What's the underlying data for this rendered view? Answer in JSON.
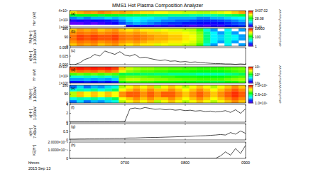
{
  "title": "MMS1 Hot Plasma Composition Analyzer",
  "x_axis": {
    "xlim": [
      365,
      540
    ],
    "xticks": [
      {
        "value": 420,
        "label": "0700"
      },
      {
        "value": 480,
        "label": "0800"
      },
      {
        "value": 540,
        "label": "0900"
      }
    ],
    "labels": [
      "hhmm",
      "2015 Sep 13"
    ]
  },
  "time_bins": [
    365,
    372,
    379,
    386,
    393,
    400,
    407,
    414,
    421,
    428,
    435,
    442,
    449,
    456,
    463,
    470,
    477,
    484,
    491,
    498,
    505,
    512,
    519,
    526,
    533,
    540
  ],
  "chart_data": [
    {
      "type": "heatmap",
      "panel_label": "(a)",
      "ylabel": [
        "He⁺ (eV)"
      ],
      "log": "y",
      "ylim": [
        1,
        40000
      ],
      "yticks": [
        {
          "value": 40000,
          "label": "4×10⁴"
        },
        {
          "value": 100,
          "label": "1×10²"
        },
        {
          "value": 1,
          "label": "1×10⁰"
        }
      ],
      "y_bins": [
        1,
        5,
        30,
        150,
        900,
        5000,
        40000
      ],
      "colorbar": {
        "range": [
          0.23,
          3437.02
        ],
        "ticks": [
          3437.02,
          28.08,
          0.23
        ],
        "label": "eV/cm²/s/sr/eV",
        "log": true
      },
      "cells": [
        [
          null,
          null,
          null,
          null,
          null,
          null,
          null,
          null,
          0.5,
          0.8,
          0.5,
          0.5,
          0.4,
          0.5,
          0.4,
          0.5,
          0.4,
          0.3,
          0.4,
          0.3,
          0.5,
          0.4,
          0.6,
          0.8,
          1
        ],
        [
          0.3,
          0.3,
          0.4,
          0.3,
          0.4,
          0.5,
          0.6,
          1.2,
          2,
          3,
          2.5,
          2,
          1.5,
          1.2,
          1,
          1,
          0.8,
          0.8,
          0.7,
          0.6,
          0.6,
          0.7,
          0.9,
          1.2,
          1.5
        ],
        [
          0.5,
          0.6,
          0.5,
          0.7,
          0.6,
          0.8,
          1,
          2,
          4,
          5,
          4,
          3,
          3,
          2,
          2,
          1.5,
          1.5,
          1.2,
          1,
          1,
          1,
          1.2,
          1.5,
          2,
          3
        ],
        [
          2,
          3,
          2,
          3,
          3,
          4,
          3,
          4,
          5,
          6,
          5,
          5,
          4,
          4,
          3,
          3,
          3,
          3,
          2,
          2,
          3,
          3,
          4,
          5,
          6
        ],
        [
          30,
          40,
          35,
          40,
          30,
          40,
          35,
          30,
          30,
          25,
          25,
          20,
          20,
          20,
          15,
          15,
          15,
          12,
          12,
          10,
          12,
          15,
          20,
          25,
          30
        ],
        [
          500,
          800,
          1000,
          900,
          1200,
          1000,
          800,
          900,
          700,
          600,
          500,
          500,
          400,
          400,
          300,
          300,
          250,
          250,
          200,
          200,
          250,
          300,
          400,
          600,
          900
        ]
      ]
    },
    {
      "type": "heatmap",
      "panel_label": "(b)",
      "ylabel": [
        "PA[He⁺]",
        "1-100keV"
      ],
      "ylim": [
        0,
        180
      ],
      "yticks": [
        0,
        90,
        180
      ],
      "y_bins": [
        0,
        30,
        60,
        90,
        120,
        150,
        180
      ],
      "colorbar": {
        "range": [
          1,
          10000
        ],
        "ticks": [
          10000,
          100,
          1
        ],
        "label": "eV/cm²/s/sr/eV",
        "log": true
      },
      "cells": [
        [
          2000,
          3000,
          2500,
          3000,
          2000,
          2500,
          3000,
          2000,
          1500,
          2000,
          1500,
          1500,
          1000,
          1200,
          1000,
          1000,
          800,
          700,
          300,
          30,
          10,
          null,
          20,
          null,
          10
        ],
        [
          3000,
          4000,
          3500,
          4000,
          3000,
          3500,
          4000,
          3000,
          2500,
          3000,
          2500,
          2000,
          2000,
          1800,
          1500,
          1500,
          1200,
          1000,
          500,
          50,
          20,
          10,
          30,
          10,
          null
        ],
        [
          4000,
          6000,
          5000,
          6000,
          5000,
          5000,
          6000,
          4000,
          3500,
          4000,
          3500,
          3000,
          2500,
          2500,
          2000,
          2000,
          1500,
          1200,
          600,
          60,
          20,
          15,
          30,
          20,
          10
        ],
        [
          4000,
          6000,
          5000,
          6000,
          5000,
          5000,
          6000,
          4000,
          3500,
          4000,
          3500,
          3000,
          2500,
          2500,
          2000,
          2000,
          1500,
          1200,
          600,
          60,
          20,
          15,
          30,
          20,
          10
        ],
        [
          3000,
          4000,
          3500,
          4000,
          3000,
          3500,
          4000,
          3000,
          2500,
          3000,
          2500,
          2000,
          2000,
          1800,
          1500,
          1500,
          1200,
          1000,
          500,
          50,
          20,
          10,
          30,
          10,
          null
        ],
        [
          2000,
          3000,
          2500,
          3000,
          2000,
          2500,
          3000,
          2000,
          1500,
          2000,
          1500,
          1500,
          1000,
          1200,
          1000,
          1000,
          800,
          700,
          300,
          30,
          10,
          null,
          20,
          null,
          10
        ]
      ]
    },
    {
      "type": "line",
      "panel_label": "(c)",
      "ylabel": [
        "n[He⁺]",
        "1-100keV"
      ],
      "ylim": [
        0,
        0.05
      ],
      "yticks": [
        {
          "value": 0,
          "label": "0.000"
        },
        {
          "value": 0.025,
          "label": "0.025"
        },
        {
          "value": 0.05,
          "label": "0.050"
        }
      ],
      "color": "#000000",
      "x": [
        365,
        370,
        375,
        380,
        385,
        390,
        395,
        400,
        405,
        410,
        415,
        420,
        425,
        430,
        435,
        440,
        445,
        450,
        455,
        460,
        465,
        470,
        475,
        480,
        485,
        490,
        495,
        500,
        505,
        510,
        515,
        520,
        525,
        530,
        535,
        540
      ],
      "values": [
        0,
        0,
        0.005,
        0.015,
        0.02,
        0.03,
        0.025,
        0.04,
        0.035,
        0.03,
        0.038,
        0.028,
        0.025,
        0.03,
        0.02,
        0.022,
        0.018,
        0.015,
        0.012,
        0.014,
        0.01,
        0.011,
        0.008,
        0.009,
        0.007,
        0.008,
        0.006,
        0.005,
        0.004,
        0.003,
        0.003,
        0.002,
        0.002,
        0.001,
        0.002,
        0.001
      ]
    },
    {
      "type": "heatmap",
      "panel_label": "(d)",
      "ylabel": [
        "H⁺ (eV)"
      ],
      "log": "y",
      "ylim": [
        1,
        40000
      ],
      "yticks": [
        {
          "value": 40000,
          "label": "4×10⁴"
        },
        {
          "value": 100,
          "label": "1×10²"
        },
        {
          "value": 1,
          "label": "1×10⁰"
        }
      ],
      "y_bins": [
        1,
        5,
        30,
        150,
        900,
        5000,
        40000
      ],
      "colorbar": {
        "range": [
          10,
          100000
        ],
        "ticks": [
          {
            "value": 100000,
            "label": "10⁵"
          },
          {
            "value": 1000,
            "label": "10³"
          },
          {
            "value": 10,
            "label": "10¹"
          }
        ],
        "label": "eV/cm²/s/sr/eV",
        "log": true
      },
      "cells": [
        [
          30,
          30,
          40,
          30,
          40,
          30,
          40,
          2000,
          3000,
          3000,
          2500,
          2500,
          2000,
          2000,
          2000,
          1500,
          1500,
          1500,
          1200,
          1200,
          1000,
          1000,
          1500,
          2000,
          3000
        ],
        [
          100,
          100,
          120,
          100,
          120,
          100,
          150,
          5000,
          8000,
          8000,
          6000,
          6000,
          5000,
          5000,
          4000,
          4000,
          3500,
          3500,
          3000,
          3000,
          3000,
          3000,
          4000,
          5000,
          6000
        ],
        [
          300,
          300,
          400,
          300,
          400,
          300,
          500,
          3000,
          4000,
          4000,
          3500,
          3000,
          3000,
          2500,
          2500,
          2000,
          2000,
          2000,
          1800,
          1800,
          1500,
          1500,
          2000,
          2500,
          3000
        ],
        [
          3000,
          4000,
          3000,
          4000,
          3000,
          4000,
          3000,
          1000,
          800,
          800,
          700,
          700,
          600,
          600,
          500,
          500,
          500,
          500,
          400,
          400,
          400,
          400,
          500,
          600,
          800
        ],
        [
          30000,
          40000,
          35000,
          40000,
          30000,
          40000,
          30000,
          10000,
          5000,
          4000,
          3000,
          3000,
          2500,
          2500,
          2000,
          2000,
          2000,
          1800,
          1500,
          1500,
          1500,
          1500,
          2000,
          2500,
          3000
        ],
        [
          60000,
          80000,
          70000,
          80000,
          70000,
          80000,
          60000,
          20000,
          8000,
          6000,
          5000,
          5000,
          4000,
          4000,
          3500,
          3500,
          3000,
          3000,
          2500,
          2500,
          2500,
          2500,
          3000,
          3500,
          4000
        ]
      ]
    },
    {
      "type": "heatmap",
      "panel_label": "(e)",
      "ylabel": [
        "PA[H⁺]",
        "1-100keV"
      ],
      "ylim": [
        0,
        180
      ],
      "yticks": [
        0,
        90,
        180
      ],
      "y_bins": [
        0,
        30,
        60,
        90,
        120,
        150,
        180
      ],
      "colorbar": {
        "range": [
          100000,
          700000
        ],
        "ticks": [
          {
            "value": 700000,
            "label": "7.0×10⁵"
          },
          {
            "value": 260000,
            "label": "2.6×10⁵"
          },
          {
            "value": 100000,
            "label": "1.0×10⁵"
          }
        ],
        "label": "eV/cm²/s/sr/eV",
        "log": true
      },
      "cells": [
        [
          150000,
          180000,
          150000,
          170000,
          160000,
          180000,
          200000,
          400000,
          450000,
          500000,
          450000,
          500000,
          400000,
          450000,
          500000,
          450000,
          400000,
          450000,
          500000,
          450000,
          400000,
          450000,
          500000,
          550000,
          500000
        ],
        [
          200000,
          220000,
          210000,
          230000,
          200000,
          220000,
          250000,
          450000,
          500000,
          550000,
          500000,
          550000,
          500000,
          500000,
          550000,
          500000,
          450000,
          500000,
          550000,
          500000,
          450000,
          500000,
          550000,
          600000,
          550000
        ],
        [
          400000,
          500000,
          450000,
          500000,
          450000,
          500000,
          450000,
          550000,
          600000,
          600000,
          550000,
          600000,
          550000,
          600000,
          600000,
          550000,
          500000,
          550000,
          600000,
          550000,
          500000,
          550000,
          600000,
          650000,
          600000
        ],
        [
          400000,
          500000,
          450000,
          500000,
          450000,
          500000,
          450000,
          550000,
          600000,
          600000,
          550000,
          600000,
          550000,
          600000,
          600000,
          550000,
          500000,
          550000,
          600000,
          550000,
          500000,
          550000,
          600000,
          650000,
          600000
        ],
        [
          200000,
          220000,
          210000,
          230000,
          200000,
          220000,
          250000,
          450000,
          500000,
          550000,
          500000,
          550000,
          500000,
          500000,
          550000,
          500000,
          450000,
          500000,
          550000,
          500000,
          450000,
          500000,
          550000,
          600000,
          550000
        ],
        [
          150000,
          180000,
          150000,
          170000,
          160000,
          180000,
          200000,
          400000,
          450000,
          500000,
          450000,
          500000,
          400000,
          450000,
          500000,
          450000,
          400000,
          450000,
          500000,
          450000,
          400000,
          450000,
          500000,
          550000,
          500000
        ]
      ]
    },
    {
      "type": "line",
      "panel_label": "(f)",
      "ylabel": [
        "n[H⁺]",
        "1-100eV"
      ],
      "ylim": [
        0,
        4
      ],
      "yticks": [
        0,
        2,
        4
      ],
      "color": "#000000",
      "x": [
        365,
        370,
        375,
        380,
        385,
        390,
        395,
        400,
        405,
        410,
        415,
        420,
        425,
        430,
        435,
        440,
        445,
        450,
        455,
        460,
        465,
        470,
        475,
        480,
        485,
        490,
        495,
        500,
        505,
        510,
        515,
        520,
        525,
        530,
        535,
        540
      ],
      "values": [
        0.1,
        0.1,
        0.1,
        0.1,
        0.1,
        0.1,
        0.1,
        0.1,
        0.1,
        0.1,
        0.1,
        0.2,
        3.0,
        3.2,
        3.0,
        3.3,
        3.1,
        2.9,
        3.0,
        2.8,
        2.9,
        2.7,
        2.8,
        2.6,
        2.7,
        2.5,
        2.6,
        2.4,
        2.5,
        2.3,
        2.4,
        2.6,
        2.2,
        2.8,
        2.0,
        3.0
      ]
    },
    {
      "type": "line",
      "panel_label": "(g)",
      "ylabel": [
        "n[H⁺]",
        "7-40keV"
      ],
      "ylim": [
        0,
        1
      ],
      "yticks": [
        0,
        0.5,
        1
      ],
      "color": "#000000",
      "x": [
        365,
        370,
        375,
        380,
        385,
        390,
        395,
        400,
        405,
        410,
        415,
        420,
        425,
        430,
        435,
        440,
        445,
        450,
        455,
        460,
        465,
        470,
        475,
        480,
        485,
        490,
        495,
        500,
        505,
        510,
        515,
        520,
        525,
        530,
        535,
        540
      ],
      "values": [
        0.05,
        0.05,
        0.06,
        0.06,
        0.07,
        0.07,
        0.08,
        0.08,
        0.09,
        0.1,
        0.1,
        0.11,
        0.12,
        0.12,
        0.13,
        0.14,
        0.15,
        0.15,
        0.16,
        0.17,
        0.18,
        0.19,
        0.2,
        0.21,
        0.22,
        0.24,
        0.25,
        0.26,
        0.28,
        0.3,
        0.33,
        0.3,
        0.45,
        0.35,
        0.55,
        0.4
      ]
    },
    {
      "type": "line",
      "panel_label": "(h)",
      "ylabel": [
        "KE[H⁺]"
      ],
      "ylim": [
        0,
        2e-05
      ],
      "yticks": [
        0,
        {
          "value": 1e-05,
          "label": "1.0000×10⁻⁵"
        },
        {
          "value": 2e-05,
          "label": "2.0000×10⁻⁵"
        }
      ],
      "color": "#000000",
      "x": [
        365,
        370,
        375,
        380,
        385,
        390,
        395,
        400,
        405,
        410,
        415,
        420,
        425,
        430,
        435,
        440,
        445,
        450,
        455,
        460,
        465,
        470,
        475,
        480,
        485,
        490,
        495,
        500,
        505,
        510,
        515,
        520,
        525,
        530,
        535,
        540
      ],
      "values": [
        0,
        0,
        0,
        0,
        0,
        0,
        0,
        0,
        0,
        0,
        0,
        0,
        0,
        0,
        0,
        0,
        0,
        0,
        0,
        0,
        0,
        0,
        0,
        0,
        0,
        0,
        0,
        0,
        0,
        0,
        3e-06,
        8e-06,
        4e-06,
        1.2e-05,
        6e-06,
        1.6e-05
      ]
    }
  ]
}
